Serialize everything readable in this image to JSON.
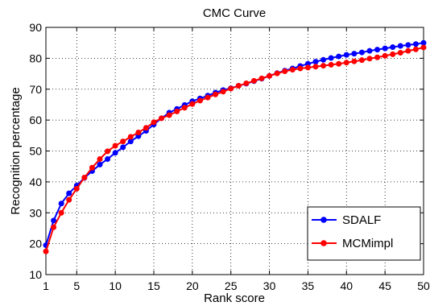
{
  "chart_data": {
    "type": "line",
    "title": "CMC Curve",
    "xlabel": "Rank score",
    "ylabel": "Recognition percentage",
    "xlim": [
      1,
      50
    ],
    "ylim": [
      10,
      90
    ],
    "xticks": [
      1,
      5,
      10,
      15,
      20,
      25,
      30,
      35,
      40,
      45,
      50
    ],
    "yticks": [
      10,
      20,
      30,
      40,
      50,
      60,
      70,
      80,
      90
    ],
    "grid": true,
    "legend_position": "bottom-right",
    "x": [
      1,
      2,
      3,
      4,
      5,
      6,
      7,
      8,
      9,
      10,
      11,
      12,
      13,
      14,
      15,
      16,
      17,
      18,
      19,
      20,
      21,
      22,
      23,
      24,
      25,
      26,
      27,
      28,
      29,
      30,
      31,
      32,
      33,
      34,
      35,
      36,
      37,
      38,
      39,
      40,
      41,
      42,
      43,
      44,
      45,
      46,
      47,
      48,
      49,
      50
    ],
    "series": [
      {
        "name": "SDALF",
        "color": "#0000ff",
        "marker": "circle",
        "values": [
          19.5,
          27.5,
          33.0,
          36.3,
          38.8,
          41.3,
          43.5,
          45.6,
          47.4,
          49.4,
          51.2,
          53.1,
          54.8,
          56.5,
          58.6,
          60.6,
          62.4,
          63.6,
          64.9,
          66.1,
          67.0,
          67.9,
          68.9,
          69.7,
          70.3,
          71.1,
          71.8,
          72.6,
          73.4,
          74.3,
          75.2,
          76.0,
          76.7,
          77.5,
          78.2,
          78.9,
          79.5,
          80.1,
          80.6,
          81.1,
          81.5,
          81.9,
          82.4,
          82.8,
          83.2,
          83.6,
          84.0,
          84.3,
          84.6,
          85.0
        ]
      },
      {
        "name": "MCMimpl",
        "color": "#ff0000",
        "marker": "circle",
        "values": [
          17.5,
          25.3,
          30.0,
          34.2,
          37.8,
          41.4,
          44.6,
          47.4,
          49.9,
          51.7,
          53.1,
          54.6,
          56.0,
          57.5,
          59.3,
          60.6,
          61.6,
          62.8,
          64.0,
          65.2,
          66.3,
          67.3,
          68.3,
          69.2,
          70.2,
          71.1,
          71.9,
          72.7,
          73.5,
          74.3,
          75.1,
          75.8,
          76.3,
          76.7,
          77.0,
          77.3,
          77.6,
          77.9,
          78.2,
          78.6,
          79.0,
          79.4,
          79.9,
          80.3,
          80.8,
          81.3,
          81.8,
          82.4,
          82.9,
          83.5
        ]
      }
    ]
  }
}
